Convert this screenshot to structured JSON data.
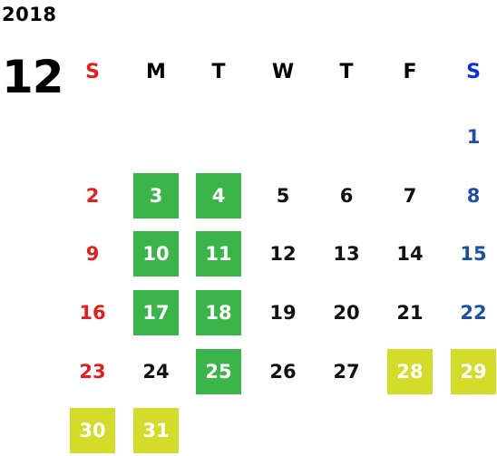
{
  "year": "2018",
  "month": "12",
  "weekdays": [
    "S",
    "M",
    "T",
    "W",
    "T",
    "F",
    "S"
  ],
  "colors": {
    "sunday": "#e02020",
    "saturday": "#1f4fa0",
    "highlight_green": "#3bb44a",
    "highlight_yellow": "#d4dc2a"
  },
  "days": [
    {
      "day": "1",
      "col": 6,
      "row": 0,
      "style": "sat"
    },
    {
      "day": "2",
      "col": 0,
      "row": 1,
      "style": "sun"
    },
    {
      "day": "3",
      "col": 1,
      "row": 1,
      "style": "green"
    },
    {
      "day": "4",
      "col": 2,
      "row": 1,
      "style": "green"
    },
    {
      "day": "5",
      "col": 3,
      "row": 1,
      "style": "wk"
    },
    {
      "day": "6",
      "col": 4,
      "row": 1,
      "style": "wk"
    },
    {
      "day": "7",
      "col": 5,
      "row": 1,
      "style": "wk"
    },
    {
      "day": "8",
      "col": 6,
      "row": 1,
      "style": "sat"
    },
    {
      "day": "9",
      "col": 0,
      "row": 2,
      "style": "sun"
    },
    {
      "day": "10",
      "col": 1,
      "row": 2,
      "style": "green"
    },
    {
      "day": "11",
      "col": 2,
      "row": 2,
      "style": "green"
    },
    {
      "day": "12",
      "col": 3,
      "row": 2,
      "style": "wk"
    },
    {
      "day": "13",
      "col": 4,
      "row": 2,
      "style": "wk"
    },
    {
      "day": "14",
      "col": 5,
      "row": 2,
      "style": "wk"
    },
    {
      "day": "15",
      "col": 6,
      "row": 2,
      "style": "sat"
    },
    {
      "day": "16",
      "col": 0,
      "row": 3,
      "style": "sun"
    },
    {
      "day": "17",
      "col": 1,
      "row": 3,
      "style": "green"
    },
    {
      "day": "18",
      "col": 2,
      "row": 3,
      "style": "green"
    },
    {
      "day": "19",
      "col": 3,
      "row": 3,
      "style": "wk"
    },
    {
      "day": "20",
      "col": 4,
      "row": 3,
      "style": "wk"
    },
    {
      "day": "21",
      "col": 5,
      "row": 3,
      "style": "wk"
    },
    {
      "day": "22",
      "col": 6,
      "row": 3,
      "style": "sat"
    },
    {
      "day": "23",
      "col": 0,
      "row": 4,
      "style": "sun"
    },
    {
      "day": "24",
      "col": 1,
      "row": 4,
      "style": "wk"
    },
    {
      "day": "25",
      "col": 2,
      "row": 4,
      "style": "green"
    },
    {
      "day": "26",
      "col": 3,
      "row": 4,
      "style": "wk"
    },
    {
      "day": "27",
      "col": 4,
      "row": 4,
      "style": "wk"
    },
    {
      "day": "28",
      "col": 5,
      "row": 4,
      "style": "yellow"
    },
    {
      "day": "29",
      "col": 6,
      "row": 4,
      "style": "yellow"
    },
    {
      "day": "30",
      "col": 0,
      "row": 5,
      "style": "yellow"
    },
    {
      "day": "31",
      "col": 1,
      "row": 5,
      "style": "yellow"
    }
  ]
}
